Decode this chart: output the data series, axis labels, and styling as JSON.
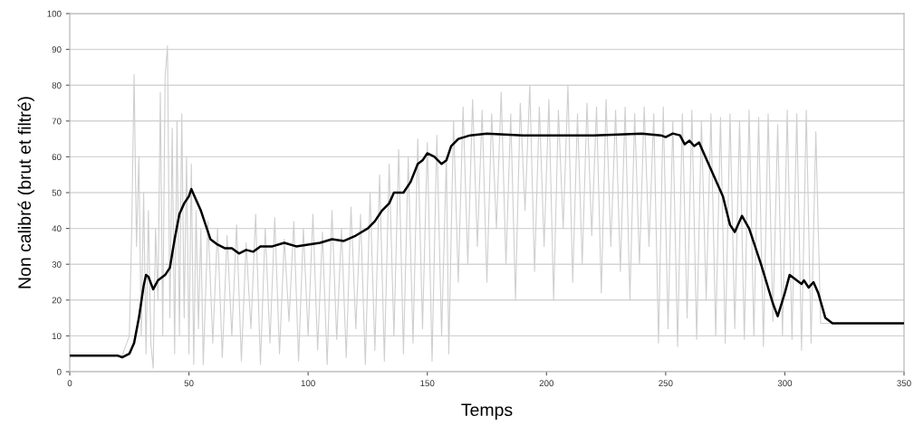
{
  "chart_data": {
    "type": "line",
    "xlabel": "Temps",
    "ylabel": "Non calibré (brut et filtré)",
    "xlim": [
      0,
      350
    ],
    "ylim": [
      0,
      100
    ],
    "xticks": [
      0,
      50,
      100,
      150,
      200,
      250,
      300,
      350
    ],
    "yticks": [
      0,
      10,
      20,
      30,
      40,
      50,
      60,
      70,
      80,
      90,
      100
    ],
    "grid": "y",
    "marker": "none",
    "line_style": "solid",
    "series": [
      {
        "color": "#cfcfcf",
        "x": [
          0,
          22,
          25,
          26,
          27,
          28,
          29,
          30,
          31,
          32,
          33,
          34,
          35,
          36,
          37,
          38,
          39,
          40,
          41,
          42,
          43,
          44,
          45,
          46,
          47,
          48,
          49,
          50,
          51,
          52,
          53,
          54,
          55,
          56,
          58,
          60,
          62,
          64,
          66,
          68,
          70,
          72,
          74,
          76,
          78,
          80,
          82,
          84,
          86,
          88,
          90,
          92,
          94,
          96,
          98,
          100,
          102,
          104,
          106,
          108,
          110,
          112,
          114,
          116,
          118,
          120,
          122,
          124,
          126,
          128,
          130,
          132,
          134,
          136,
          138,
          140,
          142,
          144,
          146,
          148,
          150,
          152,
          154,
          156,
          158,
          159,
          161,
          163,
          165,
          167,
          169,
          171,
          173,
          175,
          177,
          179,
          181,
          183,
          185,
          187,
          189,
          191,
          193,
          195,
          197,
          199,
          201,
          203,
          205,
          207,
          209,
          211,
          213,
          215,
          217,
          219,
          221,
          223,
          225,
          227,
          229,
          231,
          233,
          235,
          237,
          239,
          241,
          243,
          245,
          247,
          249,
          251,
          253,
          255,
          257,
          259,
          261,
          263,
          265,
          267,
          269,
          271,
          273,
          275,
          277,
          279,
          281,
          283,
          285,
          287,
          289,
          291,
          293,
          295,
          297,
          299,
          301,
          303,
          305,
          307,
          309,
          311,
          313,
          315,
          350
        ],
        "values": [
          4.5,
          4.5,
          10,
          40,
          83,
          35,
          60,
          10,
          50,
          5,
          45,
          8,
          1,
          40,
          20,
          78,
          10,
          82,
          91,
          15,
          68,
          5,
          70,
          10,
          72,
          15,
          60,
          5,
          58,
          2,
          45,
          12,
          40,
          2,
          42,
          8,
          40,
          4,
          38,
          10,
          41,
          3,
          36,
          12,
          44,
          2,
          40,
          8,
          43,
          5,
          37,
          14,
          42,
          3,
          40,
          10,
          44,
          6,
          39,
          2,
          45,
          9,
          40,
          4,
          46,
          12,
          44,
          2,
          50,
          6,
          55,
          3,
          58,
          10,
          62,
          5,
          60,
          8,
          65,
          12,
          64,
          3,
          66,
          10,
          60,
          5,
          70,
          25,
          74,
          30,
          76,
          35,
          73,
          25,
          72,
          40,
          78,
          30,
          72,
          20,
          75,
          45,
          80,
          28,
          74,
          35,
          76,
          20,
          73,
          40,
          80,
          25,
          72,
          30,
          75,
          38,
          74,
          22,
          76,
          35,
          73,
          28,
          74,
          20,
          72,
          30,
          74,
          35,
          72,
          8,
          74,
          12,
          70,
          7,
          72,
          15,
          73,
          9,
          70,
          20,
          72,
          10,
          71,
          8,
          72,
          12,
          70,
          9,
          73,
          10,
          71,
          7,
          72,
          14,
          69,
          10,
          73,
          9,
          72,
          6,
          73,
          8,
          67,
          13.5,
          13.5
        ]
      },
      {
        "color": "#000000",
        "x": [
          0,
          10,
          20,
          22,
          25,
          27,
          29,
          31,
          32,
          33,
          35,
          37,
          40,
          42,
          44,
          46,
          48,
          50,
          51,
          53,
          55,
          57,
          59,
          62,
          65,
          68,
          71,
          74,
          77,
          80,
          85,
          90,
          95,
          100,
          105,
          110,
          115,
          120,
          125,
          128,
          131,
          134,
          136,
          140,
          143,
          146,
          148,
          150,
          153,
          156,
          158,
          160,
          163,
          168,
          175,
          190,
          220,
          240,
          248,
          250,
          253,
          256,
          258,
          260,
          262,
          264,
          266,
          270,
          274,
          277,
          279,
          282,
          285,
          290,
          295,
          297,
          300,
          302,
          305,
          307,
          308,
          310,
          312,
          314,
          317,
          320,
          325,
          330,
          350
        ],
        "values": [
          4.5,
          4.5,
          4.5,
          4,
          5,
          8,
          15,
          24,
          27,
          26.5,
          23,
          25.5,
          27,
          29,
          37,
          44,
          47,
          49,
          51,
          48,
          45,
          41,
          37,
          35.5,
          34.5,
          34.5,
          33,
          34,
          33.5,
          35,
          35,
          36,
          35,
          35.5,
          36,
          37,
          36.5,
          38,
          40,
          42,
          45,
          47,
          50,
          50,
          53,
          58,
          59,
          61,
          60,
          58,
          59,
          63,
          65,
          66,
          66.5,
          66,
          66,
          66.5,
          66,
          65.5,
          66.5,
          66,
          63.5,
          64.5,
          63,
          64,
          61,
          55,
          49,
          41,
          39,
          43.5,
          40,
          30,
          19,
          15.5,
          22,
          27,
          25.5,
          24.5,
          25.5,
          23.5,
          25,
          22,
          15,
          13.5,
          13.5,
          13.5,
          13.5
        ]
      }
    ]
  }
}
